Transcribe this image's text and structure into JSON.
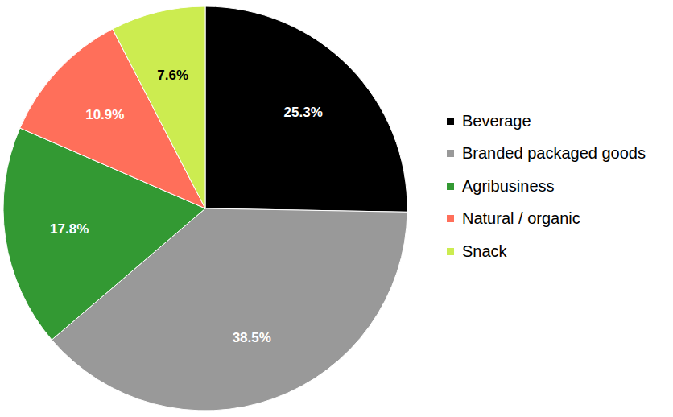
{
  "chart_data": {
    "type": "pie",
    "categories": [
      "Beverage",
      "Branded packaged goods",
      "Agribusiness",
      "Natural / organic",
      "Snack"
    ],
    "values": [
      25.3,
      38.5,
      17.8,
      10.9,
      7.6
    ],
    "value_labels": [
      "25.3%",
      "38.5%",
      "17.8%",
      "10.9%",
      "7.6%"
    ],
    "colors": [
      "#000000",
      "#999999",
      "#339933",
      "#ff6f5a",
      "#ccec50"
    ],
    "data_labels": true,
    "legend": "right"
  }
}
